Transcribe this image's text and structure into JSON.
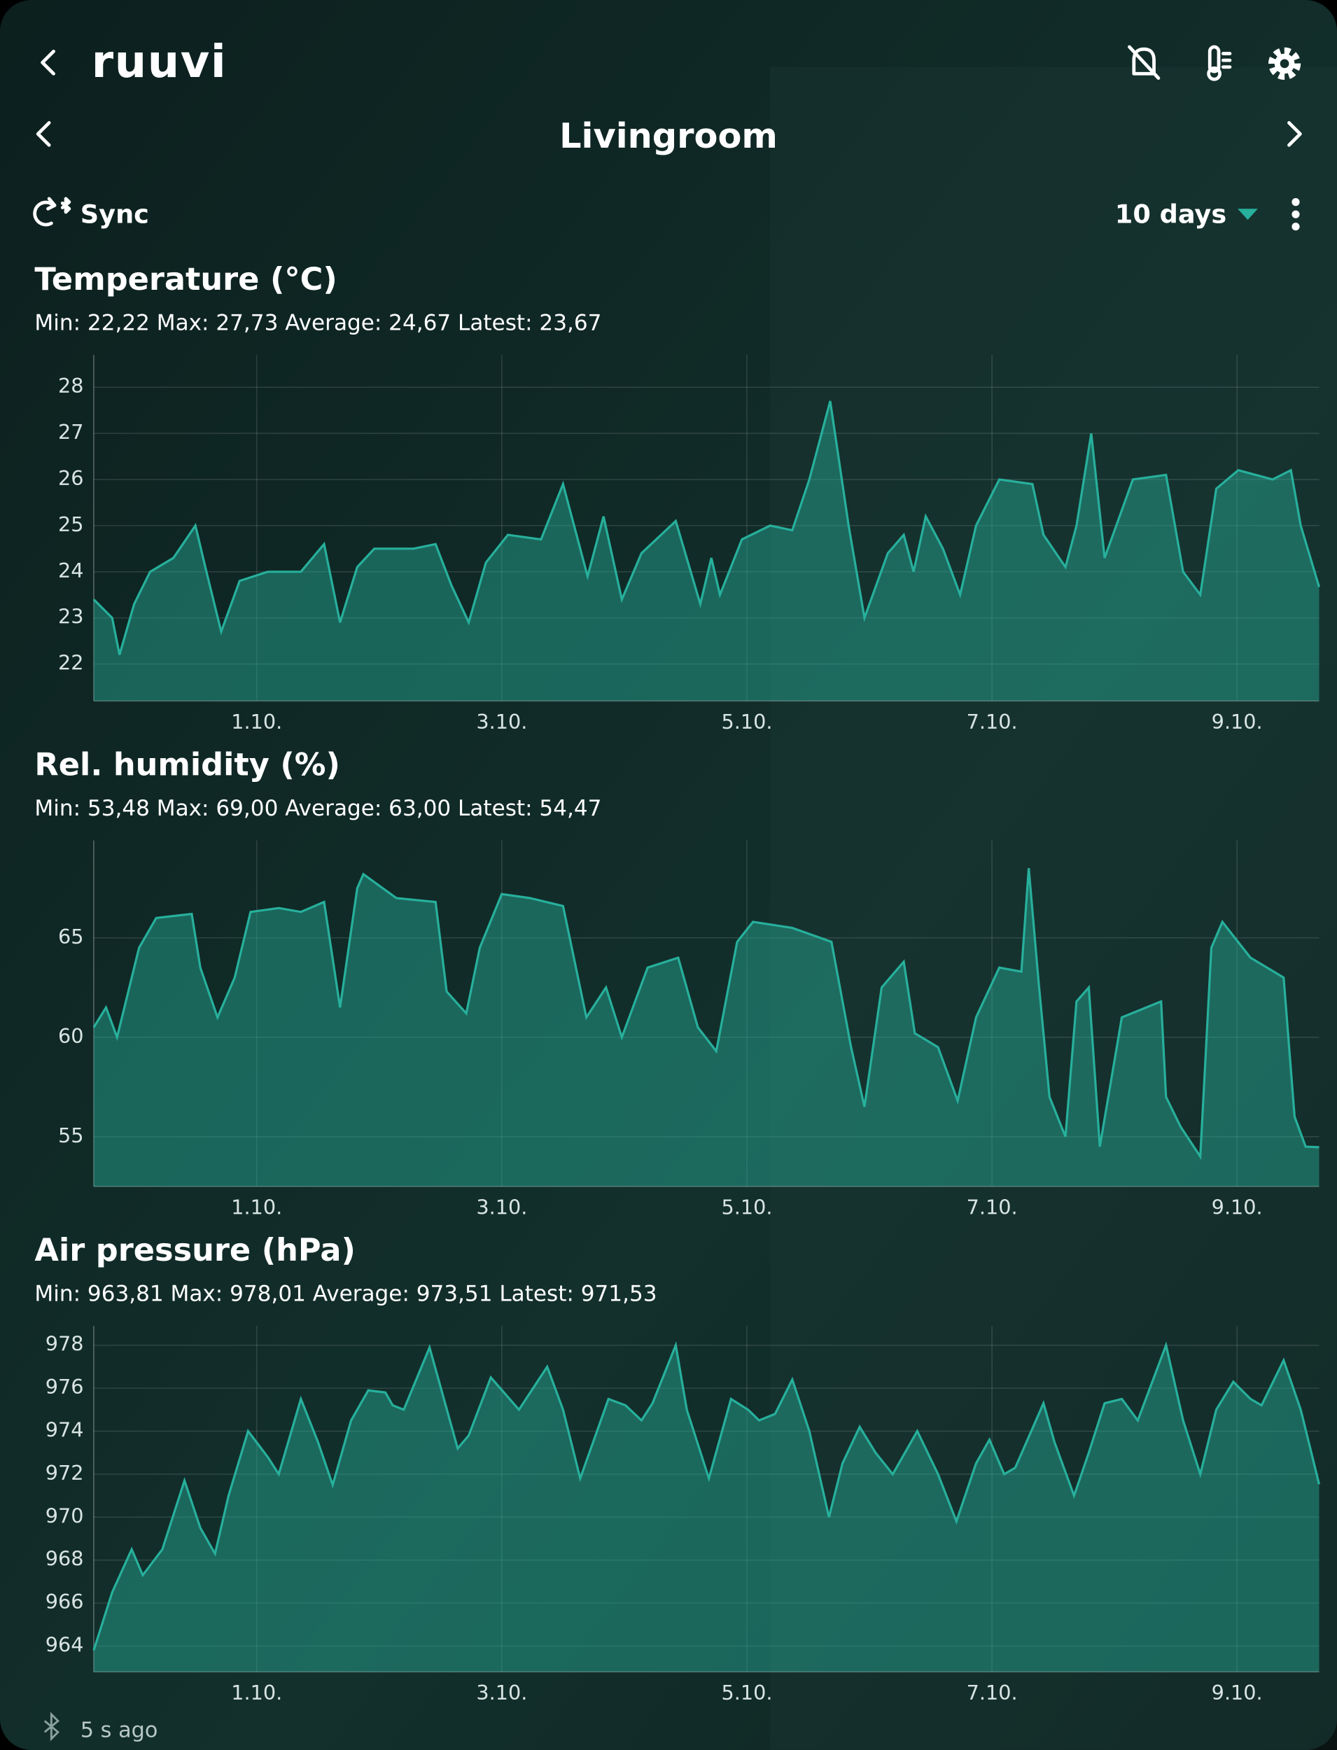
{
  "header": {
    "logo": "ruuvi",
    "title": "Livingroom",
    "sync": "Sync",
    "period": "10 days"
  },
  "footer": {
    "status": "5 s ago"
  },
  "chart_data": [
    {
      "type": "area",
      "title": "Temperature (°C)",
      "subtitle": "Min: 22,22 Max: 27,73 Average: 24,67 Latest: 23,67",
      "color": "#27b09c",
      "x": [
        -1.33,
        -1.18,
        -1.12,
        -1.0,
        -0.87,
        -0.68,
        -0.5,
        -0.41,
        -0.29,
        -0.14,
        0.09,
        0.36,
        0.55,
        0.68,
        0.82,
        0.96,
        1.28,
        1.46,
        1.59,
        1.73,
        1.87,
        2.05,
        2.32,
        2.5,
        2.7,
        2.83,
        2.98,
        3.14,
        3.42,
        3.62,
        3.71,
        3.78,
        3.96,
        4.19,
        4.37,
        4.51,
        4.68,
        4.83,
        4.96,
        5.15,
        5.28,
        5.36,
        5.46,
        5.6,
        5.74,
        5.87,
        6.06,
        6.33,
        6.42,
        6.6,
        6.69,
        6.81,
        6.92,
        7.15,
        7.42,
        7.56,
        7.7,
        7.83,
        8.01,
        8.29,
        8.44,
        8.52,
        8.67
      ],
      "values": [
        23.4,
        23.0,
        22.2,
        23.3,
        24.0,
        24.3,
        25.0,
        24.0,
        22.7,
        23.8,
        24.0,
        24.0,
        24.6,
        22.9,
        24.1,
        24.5,
        24.5,
        24.6,
        23.7,
        22.9,
        24.2,
        24.8,
        24.7,
        25.9,
        23.9,
        25.2,
        23.4,
        24.4,
        25.1,
        23.3,
        24.3,
        23.5,
        24.7,
        25.0,
        24.9,
        26.0,
        27.7,
        25.0,
        23.0,
        24.4,
        24.8,
        24.0,
        25.2,
        24.5,
        23.5,
        25.0,
        26.0,
        25.9,
        24.8,
        24.1,
        25.0,
        27.0,
        24.3,
        26.0,
        26.1,
        24.0,
        23.5,
        25.8,
        26.2,
        26.0,
        26.2,
        25.0,
        23.67
      ],
      "xlim": [
        -1.33,
        8.67
      ],
      "ylim": [
        21.2,
        28.7
      ],
      "xticks": [
        {
          "value": 0,
          "label": "1.10."
        },
        {
          "value": 2,
          "label": "3.10."
        },
        {
          "value": 4,
          "label": "5.10."
        },
        {
          "value": 6,
          "label": "7.10."
        },
        {
          "value": 8,
          "label": "9.10."
        }
      ],
      "yticks": [
        22,
        23,
        24,
        25,
        26,
        27,
        28
      ],
      "grid": true
    },
    {
      "type": "area",
      "title": "Rel. humidity (%)",
      "subtitle": "Min: 53,48 Max: 69,00 Average: 63,00 Latest: 54,47",
      "color": "#27b09c",
      "x": [
        -1.33,
        -1.23,
        -1.14,
        -0.96,
        -0.82,
        -0.53,
        -0.46,
        -0.32,
        -0.18,
        -0.05,
        0.18,
        0.36,
        0.55,
        0.68,
        0.82,
        0.87,
        1.14,
        1.46,
        1.55,
        1.71,
        1.82,
        2.0,
        2.23,
        2.5,
        2.69,
        2.85,
        2.98,
        3.19,
        3.44,
        3.6,
        3.75,
        3.92,
        4.05,
        4.37,
        4.69,
        4.85,
        4.96,
        5.1,
        5.28,
        5.37,
        5.56,
        5.72,
        5.87,
        6.06,
        6.24,
        6.3,
        6.38,
        6.47,
        6.6,
        6.69,
        6.79,
        6.88,
        7.06,
        7.38,
        7.42,
        7.54,
        7.7,
        7.79,
        7.88,
        8.11,
        8.38,
        8.47,
        8.56,
        8.67
      ],
      "values": [
        60.5,
        61.5,
        60.0,
        64.5,
        66.0,
        66.2,
        63.5,
        61.0,
        63.0,
        66.3,
        66.5,
        66.3,
        66.8,
        61.5,
        67.5,
        68.2,
        67.0,
        66.8,
        62.3,
        61.2,
        64.5,
        67.2,
        67.0,
        66.6,
        61.0,
        62.5,
        60.0,
        63.5,
        64.0,
        60.5,
        59.3,
        64.8,
        65.8,
        65.5,
        64.8,
        59.5,
        56.5,
        62.5,
        63.8,
        60.2,
        59.5,
        56.8,
        61.0,
        63.5,
        63.3,
        68.5,
        62.8,
        57.0,
        55.0,
        61.8,
        62.5,
        54.5,
        61.0,
        61.8,
        57.0,
        55.5,
        54.0,
        64.5,
        65.8,
        64.0,
        63.0,
        56.0,
        54.5,
        54.47
      ],
      "xlim": [
        -1.33,
        8.67
      ],
      "ylim": [
        52.5,
        69.9
      ],
      "xticks": [
        {
          "value": 0,
          "label": "1.10."
        },
        {
          "value": 2,
          "label": "3.10."
        },
        {
          "value": 4,
          "label": "5.10."
        },
        {
          "value": 6,
          "label": "7.10."
        },
        {
          "value": 8,
          "label": "9.10."
        }
      ],
      "yticks": [
        55,
        60,
        65
      ],
      "grid": true
    },
    {
      "type": "area",
      "title": "Air pressure (hPa)",
      "subtitle": "Min: 963,81 Max: 978,01 Average: 973,51 Latest: 971,53",
      "color": "#27b09c",
      "x": [
        -1.33,
        -1.18,
        -1.02,
        -0.93,
        -0.77,
        -0.59,
        -0.46,
        -0.34,
        -0.23,
        -0.07,
        0.09,
        0.18,
        0.36,
        0.5,
        0.62,
        0.77,
        0.91,
        1.05,
        1.11,
        1.2,
        1.41,
        1.64,
        1.73,
        1.91,
        2.14,
        2.37,
        2.5,
        2.64,
        2.87,
        3.01,
        3.14,
        3.23,
        3.42,
        3.51,
        3.69,
        3.87,
        4.01,
        4.1,
        4.23,
        4.37,
        4.51,
        4.67,
        4.78,
        4.92,
        5.05,
        5.19,
        5.39,
        5.56,
        5.71,
        5.87,
        5.98,
        6.1,
        6.19,
        6.42,
        6.51,
        6.67,
        6.79,
        6.92,
        7.06,
        7.19,
        7.42,
        7.56,
        7.7,
        7.83,
        7.97,
        8.11,
        8.2,
        8.38,
        8.52,
        8.67
      ],
      "values": [
        963.8,
        966.5,
        968.5,
        967.3,
        968.5,
        971.7,
        969.5,
        968.3,
        971.0,
        974.0,
        972.8,
        972.0,
        975.5,
        973.5,
        971.5,
        974.5,
        975.9,
        975.8,
        975.2,
        975.0,
        977.9,
        973.2,
        973.8,
        976.5,
        975.0,
        977.0,
        975.0,
        971.8,
        975.5,
        975.2,
        974.5,
        975.3,
        978.0,
        975.0,
        971.8,
        975.5,
        975.0,
        974.5,
        974.8,
        976.4,
        974.0,
        970.0,
        972.5,
        974.2,
        973.0,
        972.0,
        974.0,
        972.0,
        969.8,
        972.5,
        973.6,
        972.0,
        972.3,
        975.3,
        973.5,
        971.0,
        973.0,
        975.3,
        975.5,
        974.5,
        978.0,
        974.5,
        972.0,
        975.0,
        976.3,
        975.5,
        975.2,
        977.3,
        975.0,
        971.53
      ],
      "xlim": [
        -1.33,
        8.67
      ],
      "ylim": [
        962.8,
        978.9
      ],
      "xticks": [
        {
          "value": 0,
          "label": "1.10."
        },
        {
          "value": 2,
          "label": "3.10."
        },
        {
          "value": 4,
          "label": "5.10."
        },
        {
          "value": 6,
          "label": "7.10."
        },
        {
          "value": 8,
          "label": "9.10."
        }
      ],
      "yticks": [
        964,
        966,
        968,
        970,
        972,
        974,
        976,
        978
      ],
      "grid": true
    }
  ]
}
